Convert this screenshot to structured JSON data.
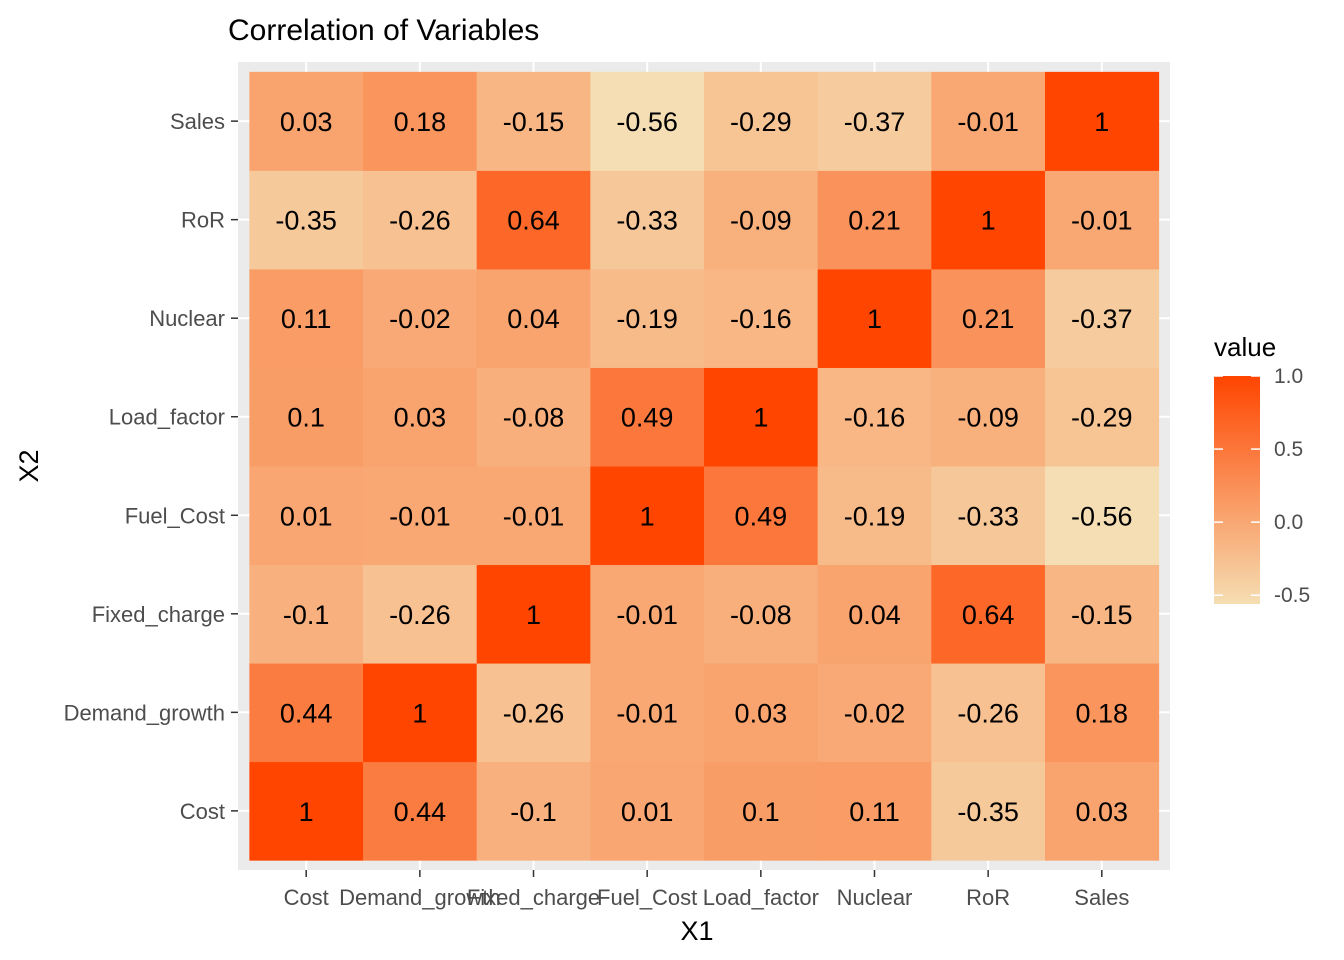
{
  "chart_data": {
    "type": "heatmap",
    "title": "Correlation of Variables",
    "xlabel": "X1",
    "ylabel": "X2",
    "x_categories": [
      "Cost",
      "Demand_growth",
      "Fixed_charge",
      "Fuel_Cost",
      "Load_factor",
      "Nuclear",
      "RoR",
      "Sales"
    ],
    "y_categories": [
      "Cost",
      "Demand_growth",
      "Fixed_charge",
      "Fuel_Cost",
      "Load_factor",
      "Nuclear",
      "RoR",
      "Sales"
    ],
    "values": [
      [
        1,
        0.44,
        -0.1,
        0.01,
        0.1,
        0.11,
        -0.35,
        0.03
      ],
      [
        0.44,
        1,
        -0.26,
        -0.01,
        0.03,
        -0.02,
        -0.26,
        0.18
      ],
      [
        -0.1,
        -0.26,
        1,
        -0.01,
        -0.08,
        0.04,
        0.64,
        -0.15
      ],
      [
        0.01,
        -0.01,
        -0.01,
        1,
        0.49,
        -0.19,
        -0.33,
        -0.56
      ],
      [
        0.1,
        0.03,
        -0.08,
        0.49,
        1,
        -0.16,
        -0.09,
        -0.29
      ],
      [
        0.11,
        -0.02,
        0.04,
        -0.19,
        -0.16,
        1,
        0.21,
        -0.37
      ],
      [
        -0.35,
        -0.26,
        0.64,
        -0.33,
        -0.09,
        0.21,
        1,
        -0.01
      ],
      [
        0.03,
        0.18,
        -0.15,
        -0.56,
        -0.29,
        -0.37,
        -0.01,
        1
      ]
    ],
    "legend": {
      "title": "value",
      "ticks": [
        "1.0",
        "0.5",
        "0.0",
        "-0.5"
      ],
      "tick_values": [
        1.0,
        0.5,
        0.0,
        -0.5
      ],
      "range": [
        -0.56,
        1.0
      ],
      "placement": "right"
    },
    "color_low": "#f5deb3",
    "color_high": "#ff4500",
    "panel_background": "#ebebeb",
    "grid": true
  }
}
